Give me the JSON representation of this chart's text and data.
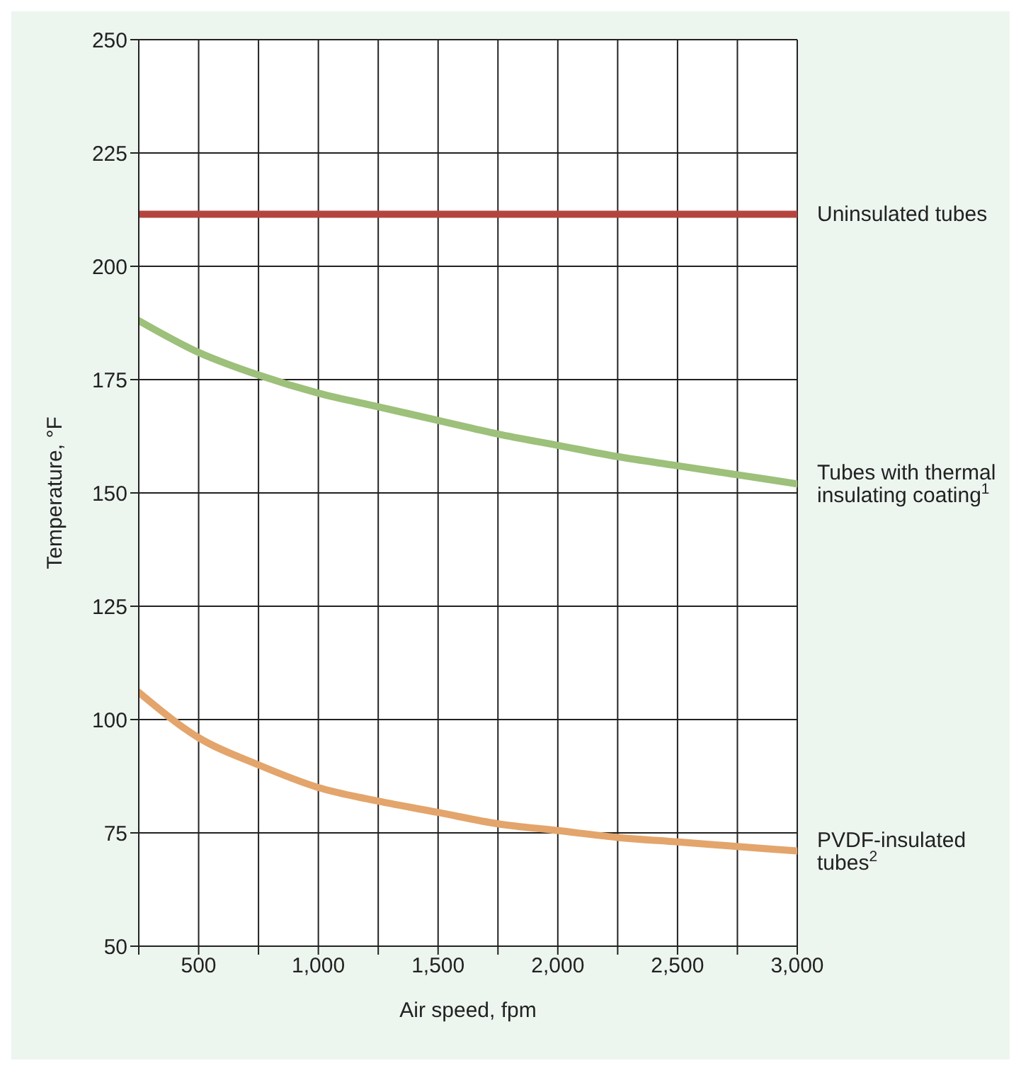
{
  "chart_data": {
    "type": "line",
    "xlabel": "Air speed, fpm",
    "ylabel": "Temperature, °F",
    "x": [
      250,
      500,
      750,
      1000,
      1250,
      1500,
      1750,
      2000,
      2250,
      2500,
      2750,
      3000
    ],
    "series": [
      {
        "name": "Uninsulated tubes",
        "color": "#b5443f",
        "values": [
          211.5,
          211.5,
          211.5,
          211.5,
          211.5,
          211.5,
          211.5,
          211.5,
          211.5,
          211.5,
          211.5,
          211.5
        ]
      },
      {
        "name": "Tubes with thermal insulating coating$^{1}$",
        "color": "#9dc07a",
        "values": [
          188,
          181,
          176,
          172,
          169,
          166,
          163,
          160.5,
          158,
          156,
          154,
          152
        ]
      },
      {
        "name": "PVDF-insulated tubes$^{2}$",
        "color": "#e3a56b",
        "values": [
          106,
          96,
          90,
          85,
          82,
          79.5,
          77,
          75.5,
          74,
          73,
          72,
          71
        ]
      }
    ],
    "xlim": [
      250,
      3000
    ],
    "xticks": [
      {
        "value": 250,
        "label": null
      },
      500,
      {
        "value": 750,
        "label": null
      },
      {
        "value": 1000,
        "label": "1,000"
      },
      {
        "value": 1250,
        "label": null
      },
      {
        "value": 1500,
        "label": "1,500"
      },
      {
        "value": 1750,
        "label": null
      },
      {
        "value": 2000,
        "label": "2,000"
      },
      {
        "value": 2250,
        "label": null
      },
      {
        "value": 2500,
        "label": "2,500"
      },
      {
        "value": 2750,
        "label": null
      },
      {
        "value": 3000,
        "label": "3,000"
      }
    ],
    "ylim": [
      50,
      250
    ],
    "yticks": [
      50,
      75,
      100,
      125,
      150,
      175,
      200,
      225,
      250
    ],
    "grid": true,
    "marker": "none",
    "line_style": "solid"
  }
}
